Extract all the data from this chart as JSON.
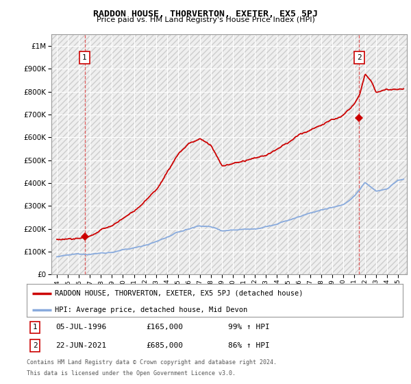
{
  "title": "RADDON HOUSE, THORVERTON, EXETER, EX5 5PJ",
  "subtitle": "Price paid vs. HM Land Registry's House Price Index (HPI)",
  "ytick_values": [
    0,
    100000,
    200000,
    300000,
    400000,
    500000,
    600000,
    700000,
    800000,
    900000,
    1000000
  ],
  "ylim": [
    0,
    1050000
  ],
  "xlim_start": 1993.5,
  "xlim_end": 2025.8,
  "hpi_color": "#88aadd",
  "price_color": "#cc0000",
  "marker_color": "#cc0000",
  "dashed_color": "#dd4444",
  "sale1_x": 1996.52,
  "sale1_y": 165000,
  "sale2_x": 2021.47,
  "sale2_y": 685000,
  "legend_label_red": "RADDON HOUSE, THORVERTON, EXETER, EX5 5PJ (detached house)",
  "legend_label_blue": "HPI: Average price, detached house, Mid Devon",
  "annotation1_label": "1",
  "annotation2_label": "2",
  "note1_box": "1",
  "note1_date": "05-JUL-1996",
  "note1_price": "£165,000",
  "note1_hpi": "99% ↑ HPI",
  "note2_box": "2",
  "note2_date": "22-JUN-2021",
  "note2_price": "£685,000",
  "note2_hpi": "86% ↑ HPI",
  "footnote1": "Contains HM Land Registry data © Crown copyright and database right 2024.",
  "footnote2": "This data is licensed under the Open Government Licence v3.0.",
  "background_color": "#ffffff",
  "grid_color": "#cccccc",
  "plot_bg": "#f0f0f0"
}
